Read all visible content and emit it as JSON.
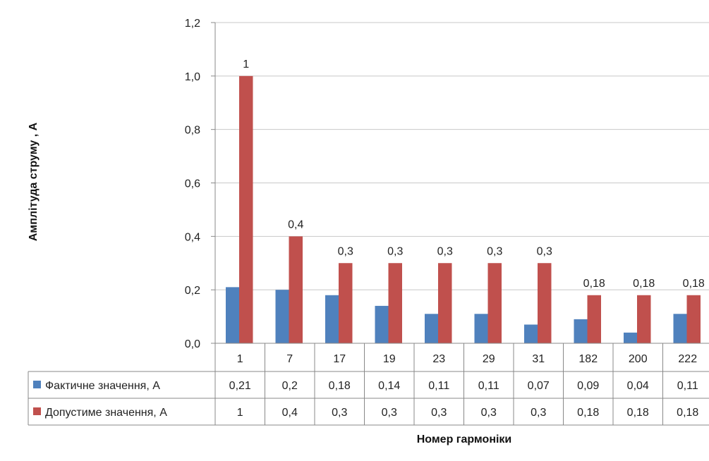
{
  "chart_data": {
    "type": "bar",
    "title": "",
    "xlabel": "Номер гармоніки",
    "ylabel": "Амплітуда струму , А",
    "ylim": [
      0,
      1.2
    ],
    "yticks": [
      "0,0",
      "0,2",
      "0,4",
      "0,6",
      "0,8",
      "1,0",
      "1,2"
    ],
    "categories": [
      "1",
      "7",
      "17",
      "19",
      "23",
      "29",
      "31",
      "182",
      "200",
      "222"
    ],
    "grid": true,
    "legend": "data-table",
    "series": [
      {
        "name": "Фактичне значення, А",
        "color": "#4f81bd",
        "values": [
          0.21,
          0.2,
          0.18,
          0.14,
          0.11,
          0.11,
          0.07,
          0.09,
          0.04,
          0.11
        ],
        "table_labels": [
          "0,21",
          "0,2",
          "0,18",
          "0,14",
          "0,11",
          "0,11",
          "0,07",
          "0,09",
          "0,04",
          "0,11"
        ],
        "data_labels": []
      },
      {
        "name": "Допустиме значення, А",
        "color": "#c0504d",
        "values": [
          1,
          0.4,
          0.3,
          0.3,
          0.3,
          0.3,
          0.3,
          0.18,
          0.18,
          0.18
        ],
        "table_labels": [
          "1",
          "0,4",
          "0,3",
          "0,3",
          "0,3",
          "0,3",
          "0,3",
          "0,18",
          "0,18",
          "0,18"
        ],
        "data_labels": [
          "1",
          "0,4",
          "0,3",
          "0,3",
          "0,3",
          "0,3",
          "0,3",
          "0,18",
          "0,18",
          "0,18"
        ]
      }
    ]
  }
}
